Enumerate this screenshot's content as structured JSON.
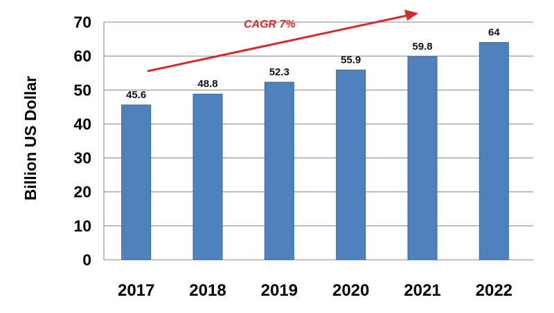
{
  "chart_data": {
    "type": "bar",
    "categories": [
      "2017",
      "2018",
      "2019",
      "2020",
      "2021",
      "2022"
    ],
    "values": [
      45.6,
      48.8,
      52.3,
      55.9,
      59.8,
      64
    ],
    "data_labels": [
      "45.6",
      "48.8",
      "52.3",
      "55.9",
      "59.8",
      "64"
    ],
    "ylabel": "Billion US Dollar",
    "xlabel": "",
    "ylim": [
      0,
      70
    ],
    "yticks": [
      0,
      10,
      20,
      30,
      40,
      50,
      60,
      70
    ],
    "grid": true,
    "annotation": "CAGR 7%",
    "colors": {
      "bar": "#4f81bd",
      "bar_edge": "#3a6595",
      "grid": "#808080",
      "annotation": "#d42a2a"
    }
  }
}
